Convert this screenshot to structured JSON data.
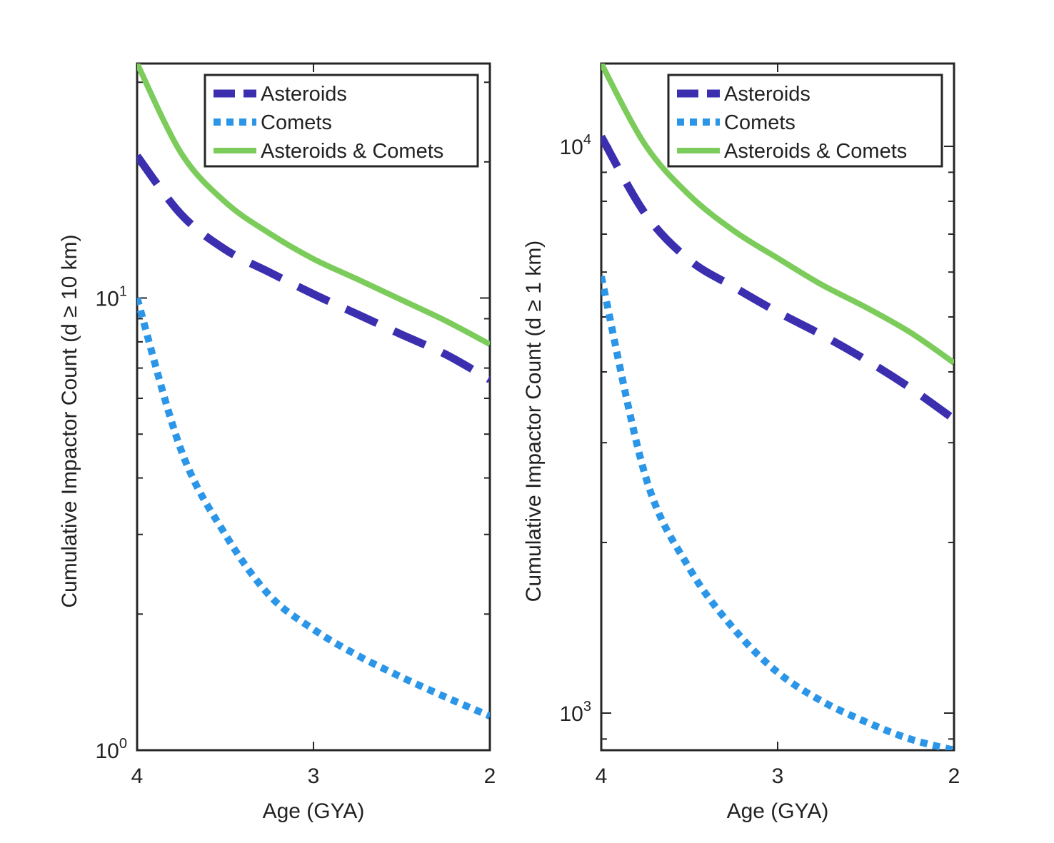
{
  "chart_data": [
    {
      "type": "line",
      "xlabel": "Age (GYA)",
      "ylabel": "Cumulative Impactor Count (d ≥ 10 km)",
      "xlim": [
        4,
        2
      ],
      "x_reversed": true,
      "ylim": [
        1,
        33
      ],
      "yscale": "log",
      "xticks": [
        "4",
        "3",
        "2"
      ],
      "yticks": [
        {
          "base": "10",
          "exp": "0"
        },
        {
          "base": "10",
          "exp": "1"
        }
      ],
      "legend_position": "top-right",
      "legend": [
        "Asteroids",
        "Comets",
        "Asteroids & Comets"
      ],
      "x": [
        4.0,
        3.75,
        3.5,
        3.25,
        3.0,
        2.75,
        2.5,
        2.25,
        2.0
      ],
      "series": [
        {
          "name": "Asteroids",
          "style": "dashed",
          "color": "#3b2fb0",
          "values": [
            20.6,
            15.3,
            12.8,
            11.4,
            10.2,
            9.2,
            8.3,
            7.5,
            6.6
          ]
        },
        {
          "name": "Comets",
          "style": "dotted",
          "color": "#2b96e8",
          "values": [
            10.0,
            4.6,
            3.0,
            2.2,
            1.85,
            1.62,
            1.45,
            1.31,
            1.19
          ]
        },
        {
          "name": "Asteroids & Comets",
          "style": "solid",
          "color": "#7ccc5c",
          "values": [
            33.0,
            20.9,
            16.3,
            13.9,
            12.2,
            11.0,
            9.9,
            8.9,
            7.9
          ]
        }
      ]
    },
    {
      "type": "line",
      "xlabel": "Age (GYA)",
      "ylabel": "Cumulative Impactor Count (d ≥ 1 km)",
      "xlim": [
        4,
        2
      ],
      "x_reversed": true,
      "ylim": [
        860,
        14000
      ],
      "yscale": "log",
      "xticks": [
        "4",
        "3",
        "2"
      ],
      "yticks": [
        {
          "base": "10",
          "exp": "3"
        },
        {
          "base": "10",
          "exp": "4"
        }
      ],
      "legend_position": "top-right",
      "legend": [
        "Asteroids",
        "Comets",
        "Asteroids & Comets"
      ],
      "x": [
        4.0,
        3.75,
        3.5,
        3.25,
        3.0,
        2.75,
        2.5,
        2.25,
        2.0
      ],
      "series": [
        {
          "name": "Asteroids",
          "style": "dashed",
          "color": "#3b2fb0",
          "values": [
            10400,
            7600,
            6300,
            5650,
            5100,
            4650,
            4200,
            3750,
            3300
          ]
        },
        {
          "name": "Comets",
          "style": "dotted",
          "color": "#2b96e8",
          "values": [
            5900,
            2620,
            1800,
            1410,
            1180,
            1050,
            965,
            900,
            860
          ]
        },
        {
          "name": "Asteroids & Comets",
          "style": "solid",
          "color": "#7ccc5c",
          "values": [
            14000,
            10050,
            8200,
            7100,
            6350,
            5700,
            5200,
            4700,
            4150
          ]
        }
      ]
    }
  ]
}
